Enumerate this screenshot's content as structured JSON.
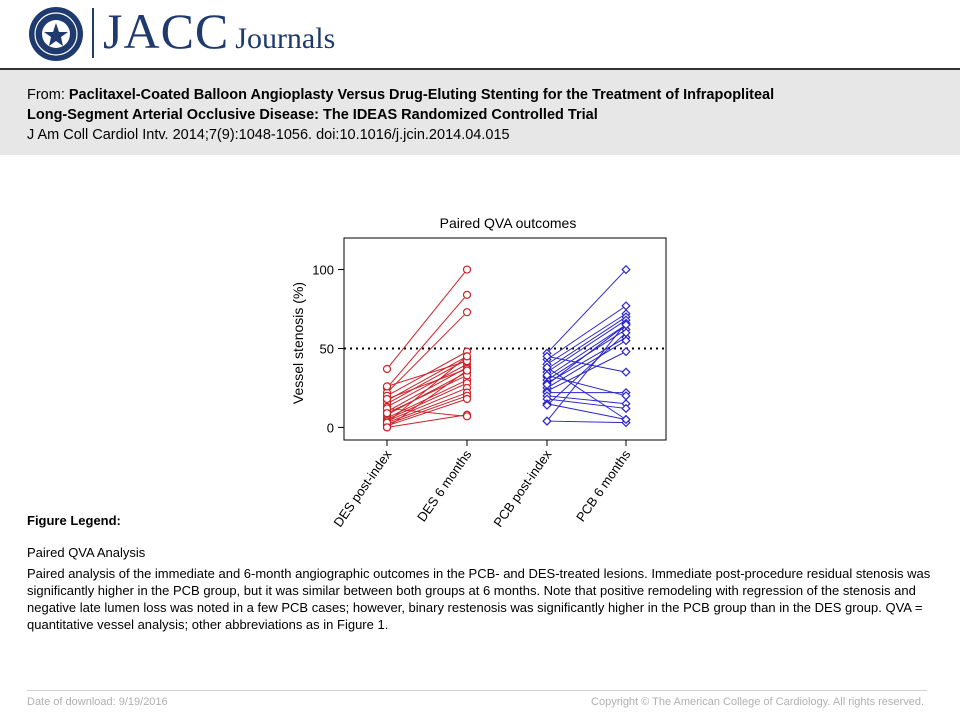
{
  "header": {
    "brand_main": "JACC",
    "brand_sub": "Journals",
    "logo_icon": "acc-seal-icon"
  },
  "citation": {
    "from_label": "From:",
    "title_line1": "Paclitaxel-Coated Balloon Angioplasty Versus Drug-Eluting Stenting for the Treatment of Infrapopliteal",
    "title_line2": "Long-Segment Arterial Occlusive Disease: The IDEAS Randomized Controlled Trial",
    "journal": "J Am Coll Cardiol Intv. 2014;7(9):1048-1056. doi:10.1016/j.jcin.2014.04.015"
  },
  "chart_data": {
    "type": "line",
    "title": "Paired QVA outcomes",
    "ylabel": "Vessel stenosis (%)",
    "xlabel": "",
    "categories": [
      "DES post-index",
      "DES 6 months",
      "PCB post-index",
      "PCB 6 months"
    ],
    "ylim": [
      -8,
      120
    ],
    "yticks": [
      0,
      50,
      100
    ],
    "reference_line": 50,
    "grid": false,
    "colors": {
      "DES": "#cc2229",
      "PCB": "#2a25c9"
    },
    "series": [
      {
        "name": "DES",
        "marker": "circle",
        "pairs": [
          [
            37,
            100
          ],
          [
            25,
            84
          ],
          [
            22,
            73
          ],
          [
            20,
            48
          ],
          [
            17,
            45
          ],
          [
            15,
            43
          ],
          [
            13,
            40
          ],
          [
            10,
            38
          ],
          [
            8,
            35
          ],
          [
            6,
            30
          ],
          [
            5,
            28
          ],
          [
            4,
            25
          ],
          [
            3,
            22
          ],
          [
            2,
            20
          ],
          [
            1,
            18
          ],
          [
            0,
            8
          ],
          [
            12,
            7
          ],
          [
            26,
            42
          ],
          [
            18,
            37
          ],
          [
            9,
            33
          ],
          [
            3,
            45
          ],
          [
            0,
            36
          ]
        ]
      },
      {
        "name": "PCB",
        "marker": "diamond",
        "pairs": [
          [
            47,
            100
          ],
          [
            43,
            77
          ],
          [
            40,
            72
          ],
          [
            37,
            70
          ],
          [
            35,
            68
          ],
          [
            32,
            65
          ],
          [
            30,
            62
          ],
          [
            28,
            57
          ],
          [
            25,
            55
          ],
          [
            23,
            48
          ],
          [
            22,
            22
          ],
          [
            20,
            15
          ],
          [
            18,
            12
          ],
          [
            15,
            5
          ],
          [
            4,
            3
          ],
          [
            4,
            66
          ],
          [
            45,
            35
          ],
          [
            33,
            20
          ],
          [
            27,
            65
          ],
          [
            14,
            60
          ],
          [
            38,
            5
          ]
        ]
      }
    ]
  },
  "legend": {
    "heading": "Figure Legend:",
    "subtitle": "Paired QVA Analysis",
    "body": "Paired analysis of the immediate and 6-month angiographic outcomes in the PCB- and DES-treated lesions. Immediate post-procedure residual stenosis was significantly higher in the PCB group, but it was similar between both groups at 6 months. Note that positive remodeling with regression of the stenosis and negative late lumen loss was noted in a few PCB cases; however, binary restenosis was significantly higher in the PCB group than in the DES group. QVA = quantitative vessel analysis; other abbreviations as in Figure 1."
  },
  "footer": {
    "download": "Date of download:  9/19/2016",
    "copyright": "Copyright © The American College of Cardiology. All rights reserved."
  }
}
